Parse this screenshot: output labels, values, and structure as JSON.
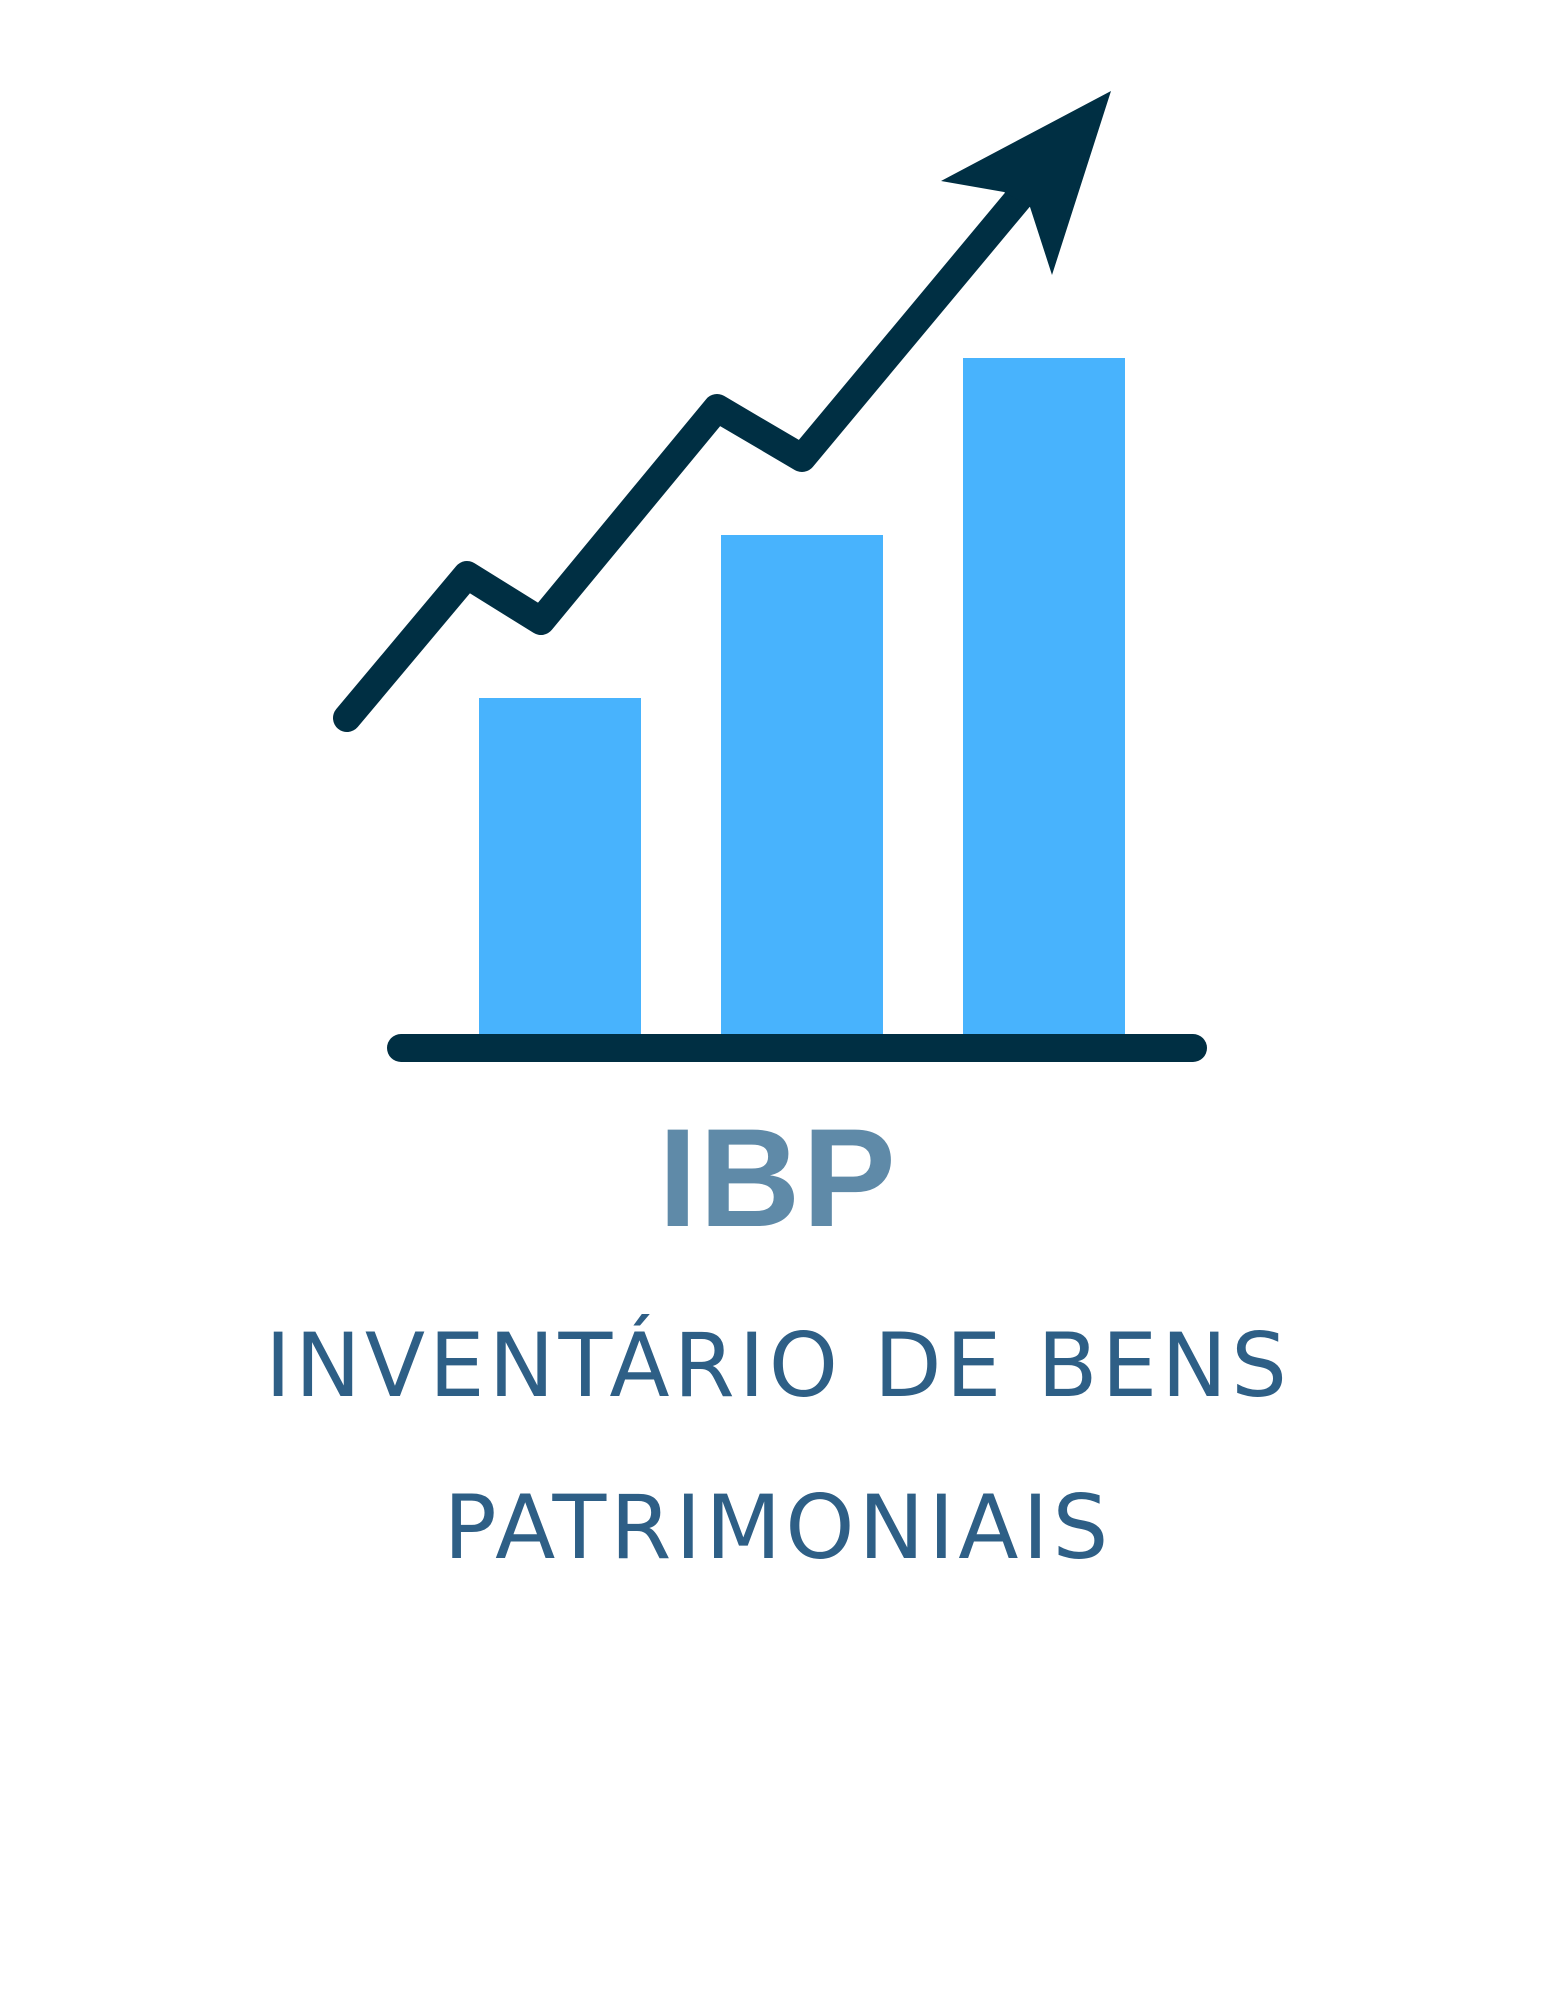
{
  "logo": {
    "graphic": "bar-chart-with-rising-arrow",
    "bars": [
      {
        "level": 0.5
      },
      {
        "level": 0.74
      },
      {
        "level": 1.0
      }
    ],
    "colors": {
      "bars": "#48b3fd",
      "arrow": "#002f43",
      "baseline": "#002f43",
      "acronym": "#5f8aa8",
      "full_name": "#2e5f86"
    }
  },
  "title": {
    "acronym": "IBP",
    "full_name": "INVENTÁRIO DE BENS PATRIMONIAIS"
  }
}
